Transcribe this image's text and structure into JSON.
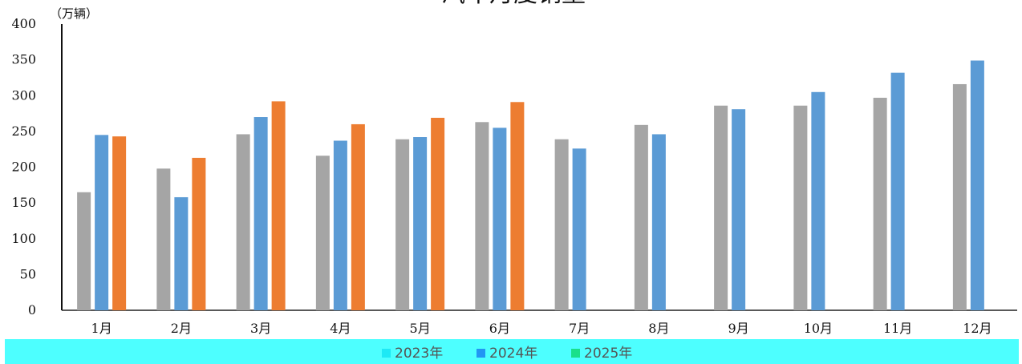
{
  "chart_data": {
    "type": "bar",
    "title": "汽车月度销量",
    "unit_label": "（万辆）",
    "categories": [
      "1月",
      "2月",
      "3月",
      "4月",
      "5月",
      "6月",
      "7月",
      "8月",
      "9月",
      "10月",
      "11月",
      "12月"
    ],
    "series": [
      {
        "name": "2023年",
        "color": "#a5a5a5",
        "values": [
          165,
          198,
          246,
          216,
          239,
          263,
          239,
          259,
          286,
          286,
          297,
          316
        ]
      },
      {
        "name": "2024年",
        "color": "#5b9bd5",
        "values": [
          245,
          158,
          270,
          237,
          242,
          255,
          226,
          246,
          281,
          305,
          332,
          349
        ]
      },
      {
        "name": "2025年",
        "color": "#ed7d31",
        "values": [
          243,
          213,
          292,
          260,
          269,
          291,
          null,
          null,
          null,
          null,
          null,
          null
        ]
      }
    ],
    "ylim": [
      0,
      400
    ],
    "yticks": [
      0,
      50,
      100,
      150,
      200,
      250,
      300,
      350,
      400
    ],
    "legend_position": "bottom",
    "legend_band_color": "#4dffff",
    "legend_marker_colors": [
      "#1de9f5",
      "#2196f3",
      "#19e08a"
    ],
    "grid": false
  }
}
